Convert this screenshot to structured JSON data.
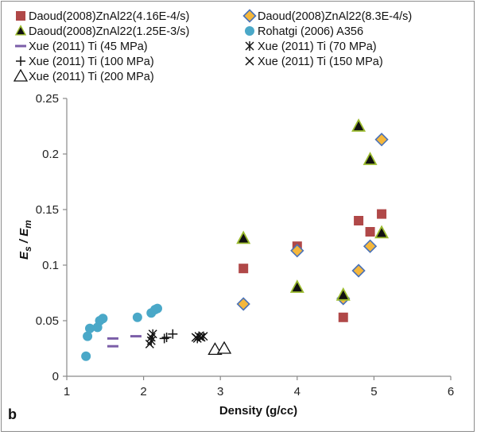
{
  "panel_label": "b",
  "chart_data": {
    "type": "scatter",
    "xlabel": "Density (g/cc)",
    "ylabel": {
      "base": "E",
      "sub_num": "s",
      "sep": " / ",
      "sub_den": "m"
    },
    "xlim": [
      1,
      6
    ],
    "ylim": [
      0,
      0.25
    ],
    "xticks": [
      1,
      2,
      3,
      4,
      5,
      6
    ],
    "yticks": [
      0,
      0.05,
      0.1,
      0.15,
      0.2,
      0.25
    ],
    "ytick_labels": [
      "0",
      "0.05",
      "0.1",
      "0.15",
      "0.2",
      "0.25"
    ],
    "grid": false,
    "legend_position": "top",
    "series": [
      {
        "name": "Daoud(2008)ZnAl22(4.16E-4/s)",
        "marker": "square",
        "color": "#b04848",
        "points": [
          [
            3.3,
            0.097
          ],
          [
            4.0,
            0.117
          ],
          [
            4.6,
            0.053
          ],
          [
            4.8,
            0.14
          ],
          [
            4.95,
            0.13
          ],
          [
            5.1,
            0.146
          ]
        ]
      },
      {
        "name": "Daoud(2008)ZnAl22(8.3E-4/s)",
        "marker": "diamond",
        "color": "#f5b73b",
        "edge": "#4a72b8",
        "points": [
          [
            3.3,
            0.065
          ],
          [
            4.0,
            0.113
          ],
          [
            4.6,
            0.07
          ],
          [
            4.8,
            0.095
          ],
          [
            4.95,
            0.117
          ],
          [
            5.1,
            0.213
          ]
        ]
      },
      {
        "name": "Daoud(2008)ZnAl22(1.25E-3/s)",
        "marker": "triangle",
        "color": "#111111",
        "edge": "#9bbb2e",
        "points": [
          [
            3.3,
            0.124
          ],
          [
            4.0,
            0.08
          ],
          [
            4.6,
            0.073
          ],
          [
            4.8,
            0.225
          ],
          [
            4.95,
            0.195
          ],
          [
            5.1,
            0.129
          ]
        ]
      },
      {
        "name": "Rohatgi (2006) A356",
        "marker": "circle",
        "color": "#4aa8c8",
        "points": [
          [
            1.25,
            0.018
          ],
          [
            1.27,
            0.036
          ],
          [
            1.3,
            0.043
          ],
          [
            1.4,
            0.044
          ],
          [
            1.43,
            0.05
          ],
          [
            1.47,
            0.052
          ],
          [
            1.92,
            0.053
          ],
          [
            2.1,
            0.057
          ],
          [
            2.15,
            0.06
          ],
          [
            2.18,
            0.061
          ]
        ]
      },
      {
        "name": "Xue (2011) Ti (45 MPa)",
        "marker": "dash",
        "color": "#7b5ea8",
        "points": [
          [
            1.6,
            0.027
          ],
          [
            1.6,
            0.034
          ],
          [
            1.9,
            0.036
          ]
        ]
      },
      {
        "name": "Xue (2011) Ti (70 MPa)",
        "marker": "asterisk",
        "color": "#111111",
        "points": [
          [
            2.1,
            0.032
          ],
          [
            2.12,
            0.038
          ],
          [
            2.7,
            0.034
          ],
          [
            2.72,
            0.036
          ],
          [
            2.78,
            0.036
          ]
        ]
      },
      {
        "name": "Xue (2011) Ti (100 MPa)",
        "marker": "plus",
        "color": "#111111",
        "points": [
          [
            2.27,
            0.034
          ],
          [
            2.3,
            0.035
          ],
          [
            2.38,
            0.038
          ]
        ]
      },
      {
        "name": "Xue (2011) Ti (150 MPa)",
        "marker": "x",
        "color": "#111111",
        "points": [
          [
            2.08,
            0.029
          ],
          [
            2.1,
            0.035
          ],
          [
            2.68,
            0.035
          ],
          [
            2.75,
            0.035
          ]
        ]
      },
      {
        "name": "Xue (2011) Ti (200 MPa)",
        "marker": "open-triangle",
        "color": "#111111",
        "points": [
          [
            2.93,
            0.024
          ],
          [
            3.05,
            0.025
          ]
        ]
      }
    ]
  }
}
